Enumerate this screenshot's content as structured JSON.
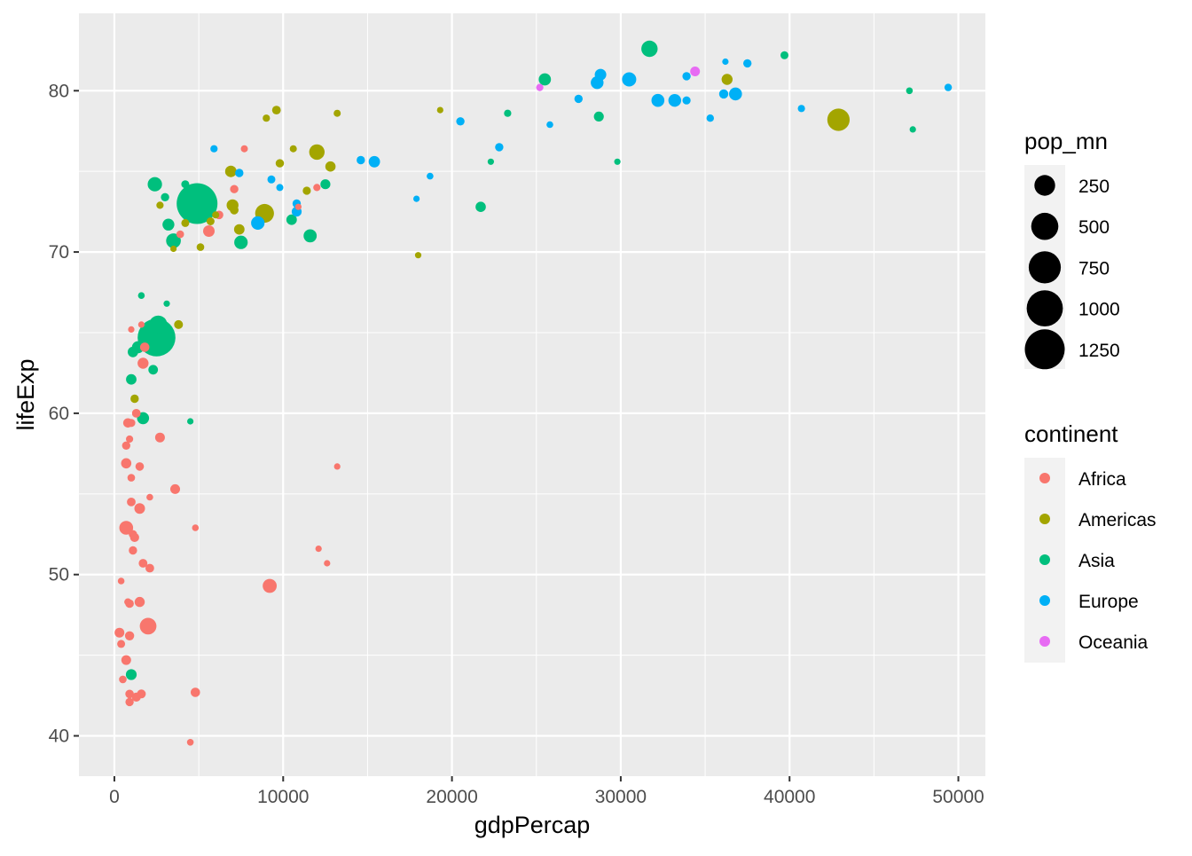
{
  "chart_data": {
    "type": "scatter",
    "title": "",
    "xlabel": "gdpPercap",
    "ylabel": "lifeExp",
    "xlim": [
      -2100,
      51600
    ],
    "ylim": [
      37.5,
      84.8
    ],
    "x_ticks": [
      0,
      10000,
      20000,
      30000,
      40000,
      50000
    ],
    "x_tick_labels": [
      "0",
      "10000",
      "20000",
      "30000",
      "40000",
      "50000"
    ],
    "y_ticks": [
      40,
      50,
      60,
      70,
      80
    ],
    "y_tick_labels": [
      "40",
      "50",
      "60",
      "70",
      "80"
    ],
    "grid": true,
    "size_legend": {
      "title": "pop_mn",
      "items": [
        {
          "label": "250",
          "value": 250
        },
        {
          "label": "500",
          "value": 500
        },
        {
          "label": "750",
          "value": 750
        },
        {
          "label": "1000",
          "value": 1000
        },
        {
          "label": "1250",
          "value": 1250
        }
      ]
    },
    "color_legend": {
      "title": "continent",
      "items": [
        {
          "label": "Africa",
          "color": "#F8766D"
        },
        {
          "label": "Americas",
          "color": "#A3A500"
        },
        {
          "label": "Asia",
          "color": "#00BF7D"
        },
        {
          "label": "Europe",
          "color": "#00B0F6"
        },
        {
          "label": "Oceania",
          "color": "#E76BF3"
        }
      ]
    },
    "series": [
      {
        "name": "Africa",
        "color": "#F8766D",
        "points": [
          [
            12000,
            74
          ],
          [
            7700,
            76.4
          ],
          [
            7100,
            73.9
          ],
          [
            6200,
            72.3
          ],
          [
            5600,
            71.3
          ],
          [
            3900,
            71.1
          ],
          [
            10900,
            72.8
          ],
          [
            1000,
            65.2
          ],
          [
            1600,
            65.5
          ],
          [
            1800,
            64.1
          ],
          [
            1700,
            63.1
          ],
          [
            1300,
            60
          ],
          [
            1000,
            59.4
          ],
          [
            800,
            59.4
          ],
          [
            2700,
            58.5
          ],
          [
            900,
            58.4
          ],
          [
            700,
            58
          ],
          [
            700,
            56.9
          ],
          [
            1500,
            56.7
          ],
          [
            1000,
            56
          ],
          [
            13200,
            56.7
          ],
          [
            3600,
            55.3
          ],
          [
            2100,
            54.8
          ],
          [
            1000,
            54.5
          ],
          [
            1500,
            54.1
          ],
          [
            700,
            52.9
          ],
          [
            1100,
            52.5
          ],
          [
            4800,
            52.9
          ],
          [
            1200,
            52.3
          ],
          [
            12100,
            51.6
          ],
          [
            1100,
            51.5
          ],
          [
            1700,
            50.7
          ],
          [
            2100,
            50.4
          ],
          [
            12600,
            50.7
          ],
          [
            9200,
            49.3
          ],
          [
            400,
            49.6
          ],
          [
            800,
            48.3
          ],
          [
            900,
            48.2
          ],
          [
            1500,
            48.3
          ],
          [
            2000,
            46.8
          ],
          [
            300,
            46.4
          ],
          [
            900,
            46.2
          ],
          [
            400,
            45.7
          ],
          [
            700,
            44.7
          ],
          [
            500,
            43.5
          ],
          [
            4800,
            42.7
          ],
          [
            900,
            42.6
          ],
          [
            1600,
            42.6
          ],
          [
            1300,
            42.4
          ],
          [
            900,
            42.1
          ],
          [
            4500,
            39.6
          ]
        ],
        "pop_mn": [
          4,
          3,
          10,
          11,
          40,
          6,
          1,
          1,
          1,
          18,
          34,
          12,
          8,
          17,
          20,
          4,
          9,
          25,
          11,
          6,
          1,
          20,
          2,
          12,
          30,
          76,
          10,
          2,
          15,
          1,
          10,
          12,
          12,
          1,
          79,
          2,
          4,
          11,
          24,
          135,
          21,
          16,
          7,
          20,
          6,
          18,
          11,
          13,
          14,
          10,
          2
        ]
      },
      {
        "name": "Americas",
        "color": "#A3A500",
        "points": [
          [
            9000,
            78.3
          ],
          [
            9600,
            78.8
          ],
          [
            13200,
            78.6
          ],
          [
            19300,
            78.8
          ],
          [
            18000,
            69.8
          ],
          [
            8900,
            72.4
          ],
          [
            12000,
            76.2
          ],
          [
            10600,
            76.4
          ],
          [
            9800,
            75.5
          ],
          [
            12800,
            75.3
          ],
          [
            11400,
            73.8
          ],
          [
            6900,
            75
          ],
          [
            7000,
            72.9
          ],
          [
            7100,
            72.6
          ],
          [
            2700,
            72.9
          ],
          [
            3800,
            65.5
          ],
          [
            1200,
            60.9
          ],
          [
            4200,
            71.8
          ],
          [
            3500,
            70.2
          ],
          [
            5100,
            70.3
          ],
          [
            5700,
            71.9
          ],
          [
            6000,
            72.3
          ],
          [
            7400,
            71.4
          ],
          [
            36300,
            80.7
          ],
          [
            42900,
            78.2
          ]
        ],
        "pop_mn": [
          4,
          12,
          3,
          1,
          1,
          190,
          108,
          3,
          9,
          26,
          8,
          40,
          44,
          12,
          4,
          13,
          9,
          7,
          1,
          6,
          7,
          3,
          28,
          33,
          301
        ]
      },
      {
        "name": "Asia",
        "color": "#00BF7D",
        "points": [
          [
            31700,
            82.6
          ],
          [
            39700,
            82.2
          ],
          [
            25500,
            80.7
          ],
          [
            47100,
            80
          ],
          [
            47300,
            77.6
          ],
          [
            28700,
            78.4
          ],
          [
            23300,
            78.6
          ],
          [
            22300,
            75.6
          ],
          [
            29800,
            75.6
          ],
          [
            21700,
            72.8
          ],
          [
            12500,
            74.2
          ],
          [
            11600,
            71
          ],
          [
            10500,
            72
          ],
          [
            2400,
            74.2
          ],
          [
            3000,
            73.4
          ],
          [
            4200,
            74.2
          ],
          [
            4900,
            73
          ],
          [
            3200,
            71.7
          ],
          [
            3500,
            70.7
          ],
          [
            7500,
            70.6
          ],
          [
            3100,
            66.8
          ],
          [
            2600,
            65.5
          ],
          [
            2500,
            64.7
          ],
          [
            1600,
            67.3
          ],
          [
            1400,
            64.1
          ],
          [
            1100,
            63.8
          ],
          [
            1000,
            62.1
          ],
          [
            2300,
            62.7
          ],
          [
            1700,
            59.7
          ],
          [
            4500,
            59.5
          ],
          [
            1000,
            43.8
          ]
        ],
        "pop_mn": [
          127,
          7,
          49,
          2,
          1,
          23,
          4,
          1,
          1,
          25,
          23,
          65,
          28,
          85,
          10,
          7,
          1318,
          44,
          91,
          69,
          1,
          170,
          1110,
          2,
          47,
          28,
          28,
          19,
          47,
          1,
          32
        ]
      },
      {
        "name": "Europe",
        "color": "#00B0F6",
        "points": [
          [
            37500,
            81.7
          ],
          [
            36200,
            81.8
          ],
          [
            33900,
            80.9
          ],
          [
            28800,
            81
          ],
          [
            28600,
            80.5
          ],
          [
            30500,
            80.7
          ],
          [
            36100,
            79.8
          ],
          [
            36800,
            79.8
          ],
          [
            32200,
            79.4
          ],
          [
            33200,
            79.4
          ],
          [
            33900,
            79.4
          ],
          [
            49400,
            80.2
          ],
          [
            27500,
            79.5
          ],
          [
            40700,
            78.9
          ],
          [
            35300,
            78.3
          ],
          [
            20500,
            78.1
          ],
          [
            25800,
            77.9
          ],
          [
            22800,
            76.5
          ],
          [
            14600,
            75.7
          ],
          [
            15400,
            75.6
          ],
          [
            5900,
            76.4
          ],
          [
            7400,
            74.9
          ],
          [
            18700,
            74.7
          ],
          [
            9300,
            74.5
          ],
          [
            9800,
            74
          ],
          [
            10800,
            73
          ],
          [
            10800,
            72.5
          ],
          [
            17900,
            73.3
          ],
          [
            8500,
            71.8
          ]
        ],
        "pop_mn": [
          9,
          1,
          9,
          40,
          58,
          82,
          16,
          60,
          61,
          59,
          8,
          5,
          10,
          4,
          5,
          10,
          2,
          10,
          10,
          38,
          4,
          10,
          2,
          7,
          3,
          10,
          22,
          1,
          71
        ]
      },
      {
        "name": "Oceania",
        "color": "#E76BF3",
        "points": [
          [
            34400,
            81.2
          ],
          [
            25200,
            80.2
          ]
        ],
        "pop_mn": [
          20,
          4
        ]
      }
    ]
  }
}
